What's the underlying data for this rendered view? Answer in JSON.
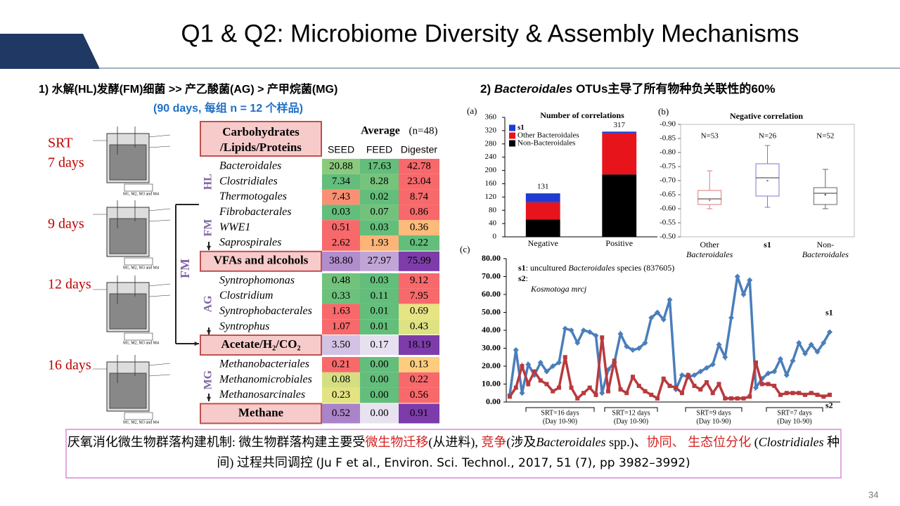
{
  "header": {
    "title": "Q1 & Q2: Microbiome Diversity & Assembly Mechanisms"
  },
  "left": {
    "heading": "1)   水解(HL)发酵(FM)细菌  >> 产乙酸菌(AG)  >  产甲烷菌(MG)",
    "subheading": "(90 days, 每组 n = 12 个样品)",
    "srt": [
      "SRT",
      "7 days",
      "9 days",
      "12 days",
      "16 days"
    ],
    "reactor_caption": "M1, M2, M3 and M4"
  },
  "right_heading": [
    "2) ",
    "Bacteroidales",
    " OTUs主导了所有物种负关联性的60%"
  ],
  "table": {
    "top_box": [
      "Carbohydrates",
      "/Lipids/Proteins"
    ],
    "header": "Average",
    "n": "(n=48)",
    "columns": [
      "SEED",
      "FEED",
      "Digester"
    ],
    "side_label": "FM",
    "sections": [
      {
        "label": "HL",
        "rows": [
          {
            "name": "Bacteroidales",
            "values": [
              "20.88",
              "17.63",
              "42.78"
            ]
          },
          {
            "name": "Clostridiales",
            "values": [
              "7.34",
              "8.28",
              "23.04"
            ]
          },
          {
            "name": "Thermotogales",
            "values": [
              "7.43",
              "0.02",
              "8.74"
            ]
          }
        ]
      },
      {
        "label": "FM",
        "rows": [
          {
            "name": "Fibrobacterales",
            "values": [
              "0.03",
              "0.07",
              "0.86"
            ]
          },
          {
            "name": "WWE1",
            "values": [
              "0.51",
              "0.03",
              "0.36"
            ]
          },
          {
            "name": "Saprospirales",
            "values": [
              "2.62",
              "1.93",
              "0.22"
            ]
          }
        ]
      },
      {
        "box": "VFAs and alcohols",
        "values": [
          "38.80",
          "27.97",
          "75.99"
        ]
      },
      {
        "label": "AG",
        "rows": [
          {
            "name": "Syntrophomonas",
            "values": [
              "0.48",
              "0.03",
              "9.12"
            ]
          },
          {
            "name": "Clostridium",
            "values": [
              "0.33",
              "0.11",
              "7.95"
            ]
          },
          {
            "name": "Syntrophobacterales",
            "values": [
              "1.63",
              "0.01",
              "0.69"
            ]
          },
          {
            "name": "Syntrophus",
            "values": [
              "1.07",
              "0.01",
              "0.43"
            ]
          }
        ]
      },
      {
        "box": "Acetate/H₂/CO₂",
        "values": [
          "3.50",
          "0.17",
          "18.19"
        ]
      },
      {
        "label": "MG",
        "rows": [
          {
            "name": "Methanobacteriales",
            "values": [
              "0.21",
              "0.00",
              "0.13"
            ]
          },
          {
            "name": "Methanomicrobiales",
            "values": [
              "0.08",
              "0.00",
              "0.22"
            ]
          },
          {
            "name": "Methanosarcinales",
            "values": [
              "0.23",
              "0.00",
              "0.56"
            ]
          }
        ]
      },
      {
        "box": "Methane",
        "values": [
          "0.52",
          "0.00",
          "0.91"
        ]
      }
    ]
  },
  "chart_data": [
    {
      "type": "stacked_bar",
      "panel": "(a)",
      "title": "Number of correlations",
      "categories": [
        "Negative",
        "Positive"
      ],
      "series": [
        {
          "name": "s1",
          "color": "#1f3bd1",
          "values": [
            27,
            5
          ]
        },
        {
          "name": "Other Bacteroidales",
          "color": "#e8141b",
          "values": [
            52,
            124
          ]
        },
        {
          "name": "Non-Bacteroidales",
          "color": "#000000",
          "values": [
            52,
            188
          ]
        }
      ],
      "totals": [
        131,
        317
      ],
      "ylim": [
        0,
        360
      ],
      "yticks": [
        0,
        40,
        80,
        120,
        160,
        200,
        240,
        280,
        320,
        360
      ]
    },
    {
      "type": "box",
      "panel": "(b)",
      "title": "Negative correlation",
      "categories": [
        [
          "Other",
          "Bacteroidales"
        ],
        [
          "s1"
        ],
        [
          "Non-",
          "Bacteroidales"
        ]
      ],
      "n_labels": [
        "N=53",
        "N=26",
        "N=52"
      ],
      "boxes": [
        {
          "min": -0.735,
          "q1": -0.665,
          "median": -0.635,
          "q3": -0.615,
          "max": -0.6,
          "mean": -0.63,
          "color": "#e07a7a"
        },
        {
          "min": -0.825,
          "q1": -0.76,
          "median": -0.71,
          "q3": -0.645,
          "max": -0.605,
          "mean": -0.7,
          "color": "#7a7ad0"
        },
        {
          "min": -0.74,
          "q1": -0.675,
          "median": -0.655,
          "q3": -0.615,
          "max": -0.6,
          "mean": -0.65,
          "color": "#666666"
        }
      ],
      "ylim": [
        -0.5,
        -0.9
      ],
      "yticks": [
        {
          "value": -0.5,
          "label": "-0.50"
        },
        {
          "value": -0.55,
          "label": "-0.55"
        },
        {
          "value": -0.6,
          "label": "-0.60"
        },
        {
          "value": -0.65,
          "label": "-0.65"
        },
        {
          "value": -0.7,
          "label": "-0.70"
        },
        {
          "value": -0.75,
          "label": "-0.75"
        },
        {
          "value": -0.8,
          "label": "-0.80"
        },
        {
          "value": -0.85,
          "label": "-0.85"
        },
        {
          "value": -0.9,
          "label": "-0.90"
        }
      ]
    },
    {
      "type": "line",
      "panel": "(c)",
      "annotations": [
        [
          "s1",
          ": uncultured ",
          "Bacteroidales",
          " species (837605)"
        ],
        [
          "s2",
          ":"
        ],
        [
          "Kosmotoga mrcj"
        ]
      ],
      "series": [
        {
          "name": "s1",
          "color": "#4a7ebb",
          "values": [
            4,
            29,
            5,
            21,
            15,
            22,
            17,
            20,
            22,
            41,
            40,
            33,
            40,
            39,
            37,
            5,
            18,
            22,
            38,
            31,
            29,
            30,
            33,
            47,
            50,
            46,
            57,
            7,
            15,
            14,
            15,
            17,
            19,
            21,
            32,
            25,
            47,
            70,
            60,
            68,
            8,
            13,
            16,
            17,
            24,
            15,
            23,
            33,
            27,
            32,
            28,
            33,
            39
          ]
        },
        {
          "name": "s2",
          "color": "#b83a3e",
          "values": [
            3,
            8,
            20,
            10,
            17,
            12,
            10,
            6,
            8,
            25,
            8,
            2,
            5,
            8,
            4,
            36,
            6,
            23,
            7,
            5,
            14,
            9,
            6,
            4,
            2,
            13,
            9,
            8,
            5,
            15,
            9,
            7,
            11,
            5,
            10,
            2,
            2,
            2,
            2,
            3,
            22,
            10,
            10,
            9,
            4,
            5,
            5,
            5,
            4,
            5,
            4,
            3,
            4
          ]
        }
      ],
      "groups": [
        [
          "SRT=16 days",
          "(Day 10-90)"
        ],
        [
          "SRT=12 days",
          "(Day 10-90)"
        ],
        [
          "SRT=9 days",
          "(Day 10-90)"
        ],
        [
          "SRT=7 days",
          "(Day 10-90)"
        ]
      ],
      "ylim": [
        0,
        80
      ],
      "yticks": [
        {
          "value": 0,
          "label": "0.00"
        },
        {
          "value": 10,
          "label": "10.00"
        },
        {
          "value": 20,
          "label": "20.00"
        },
        {
          "value": 30,
          "label": "30.00"
        },
        {
          "value": 40,
          "label": "40.00"
        },
        {
          "value": 50,
          "label": "50.00"
        },
        {
          "value": 60,
          "label": "60.00"
        },
        {
          "value": 70,
          "label": "70.00"
        },
        {
          "value": 80,
          "label": "80.00"
        }
      ]
    }
  ],
  "caption": [
    "厌氧消化微生物群落构建机制:  微生物群落构建主要受",
    "微生物迁移",
    "(从进料), ",
    "竞争",
    "(涉及",
    "Bacteroidales",
    " spp.)、",
    "协同、 生态位分化",
    " (",
    "Clostridiales",
    " 种间) 过程共同调控 ",
    "(Ju F et al., Environ. Sci. Technol., 2017, 51 (7), pp 3982–3992)"
  ],
  "page_number": "34"
}
